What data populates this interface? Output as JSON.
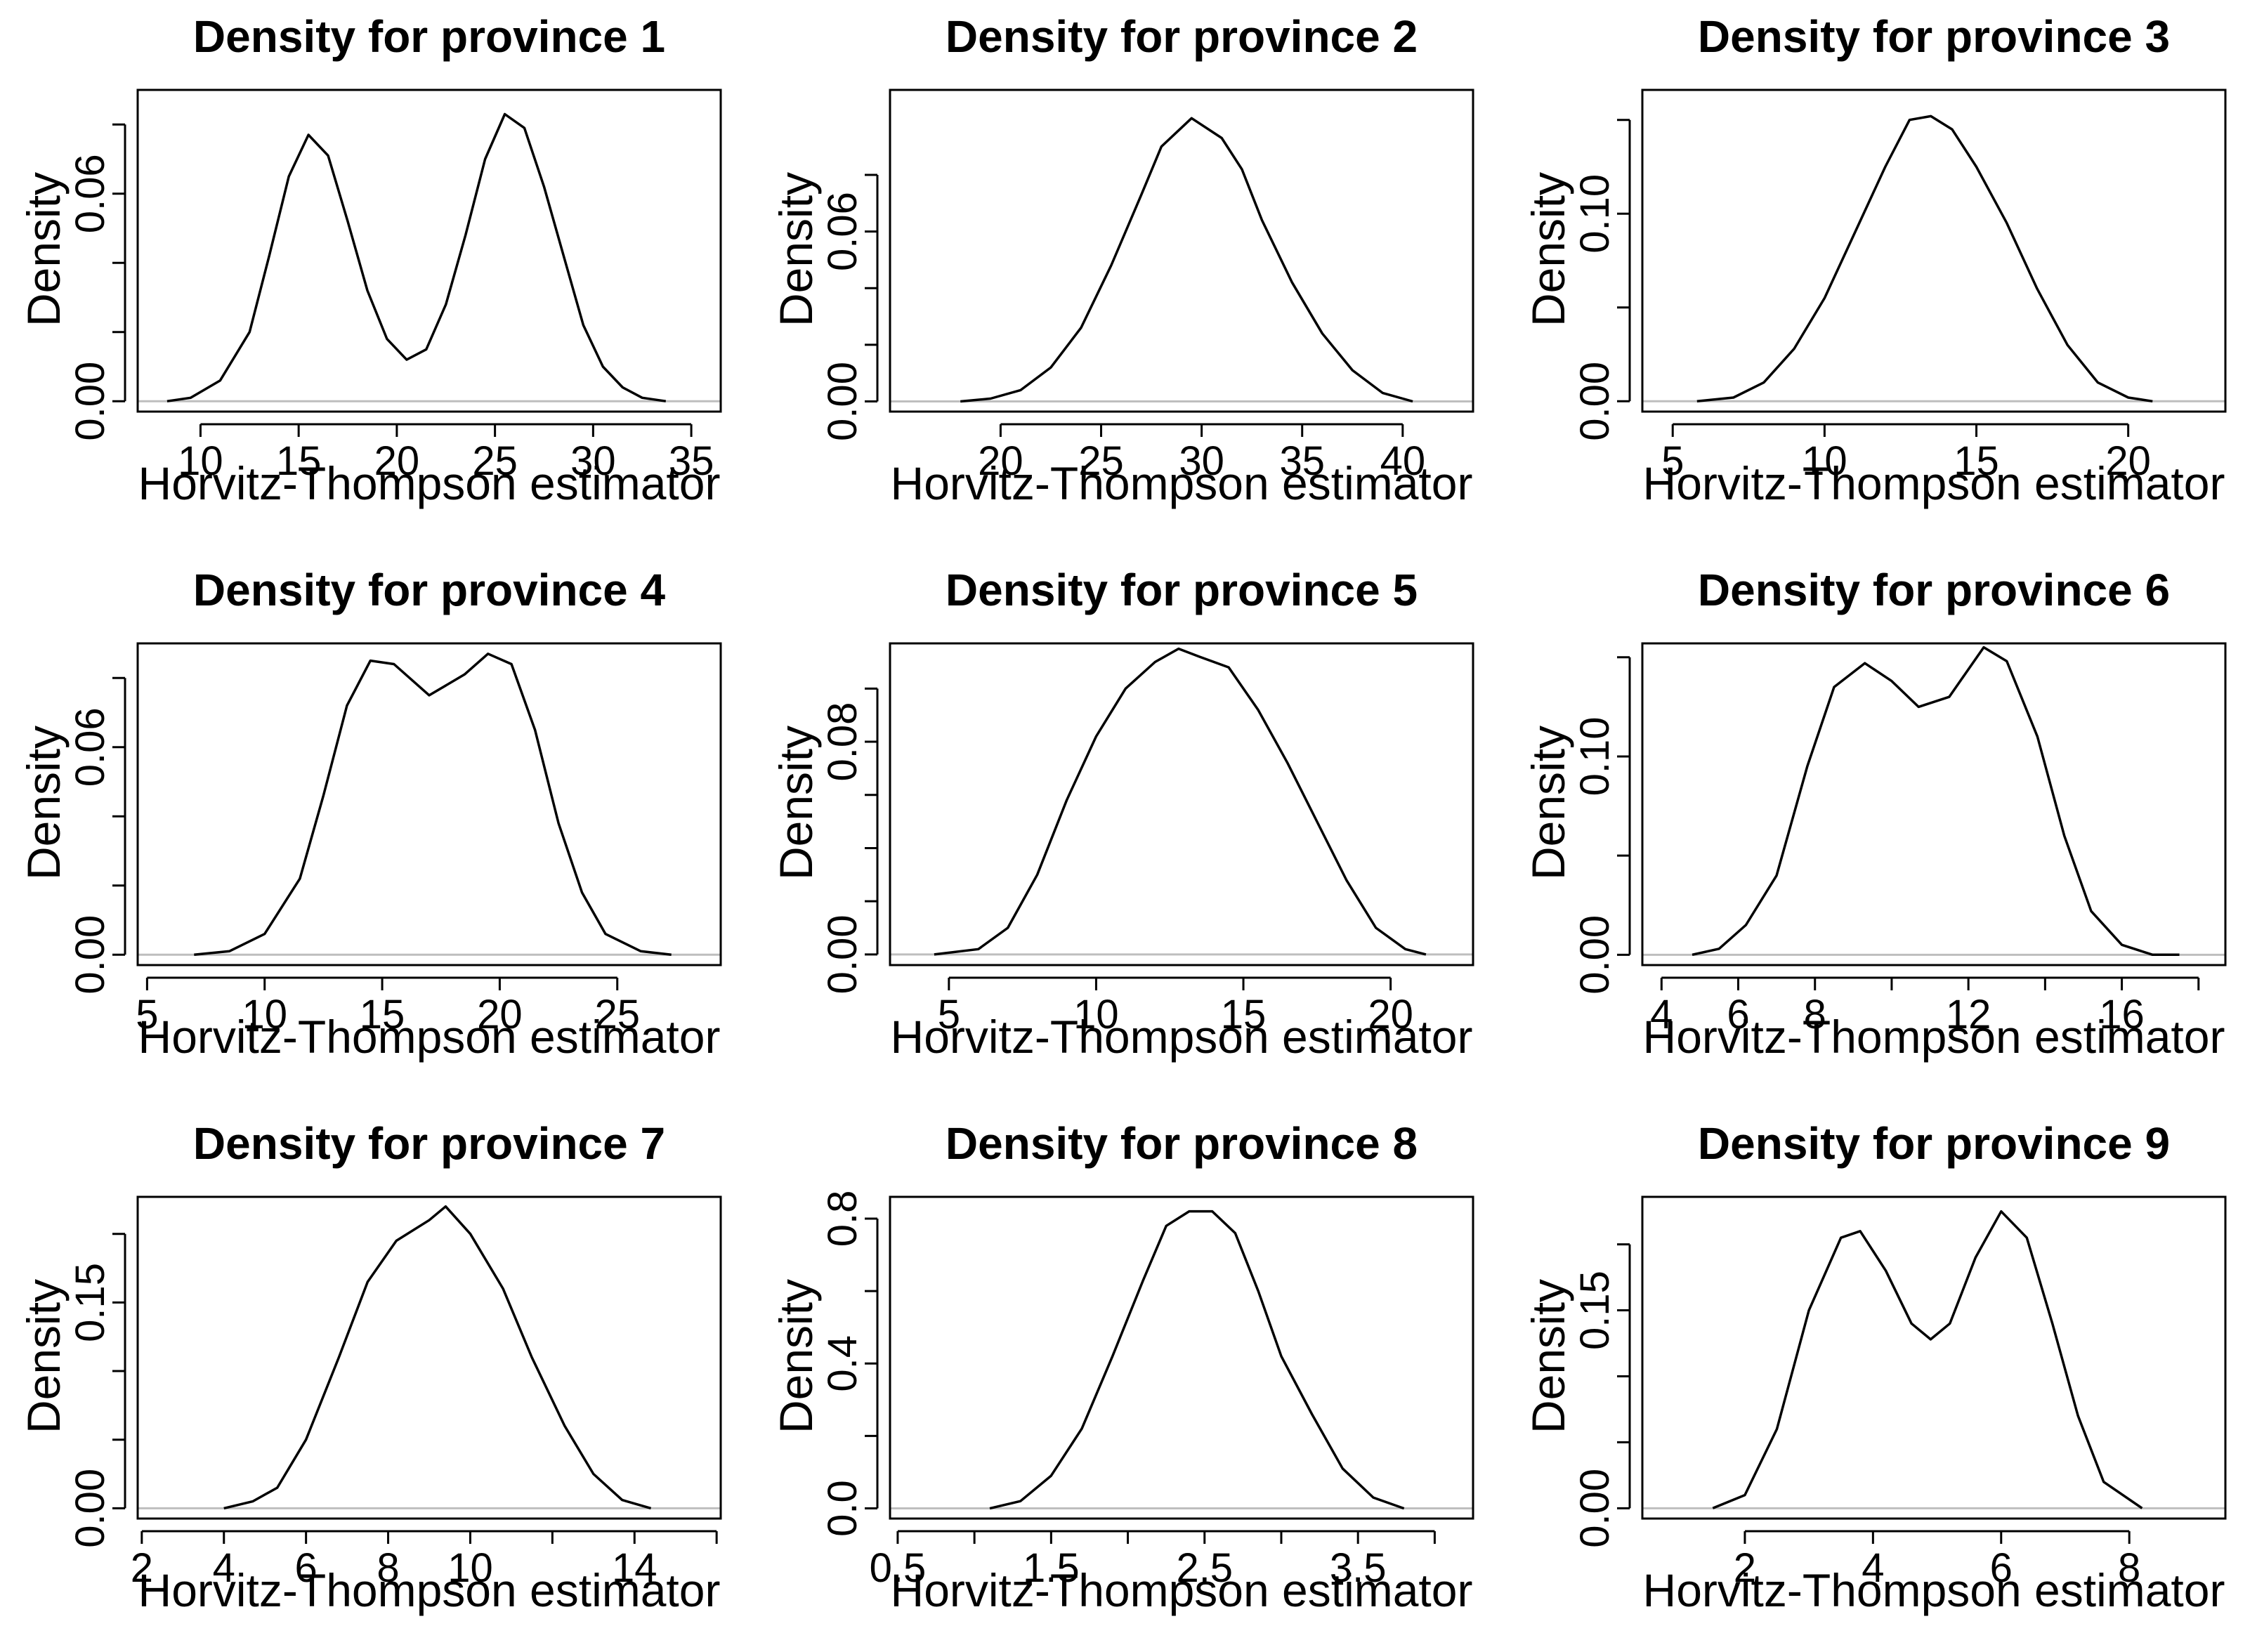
{
  "figure": {
    "panels": [
      {
        "title": "Density for province 1",
        "xlabel": "Horvitz-Thompson estimator",
        "ylabel": "Density"
      },
      {
        "title": "Density for province 2",
        "xlabel": "Horvitz-Thompson estimator",
        "ylabel": "Density"
      },
      {
        "title": "Density for province 3",
        "xlabel": "Horvitz-Thompson estimator",
        "ylabel": "Density"
      },
      {
        "title": "Density for province 4",
        "xlabel": "Horvitz-Thompson estimator",
        "ylabel": "Density"
      },
      {
        "title": "Density for province 5",
        "xlabel": "Horvitz-Thompson estimator",
        "ylabel": "Density"
      },
      {
        "title": "Density for province 6",
        "xlabel": "Horvitz-Thompson estimator",
        "ylabel": "Density"
      },
      {
        "title": "Density for province 7",
        "xlabel": "Horvitz-Thompson estimator",
        "ylabel": "Density"
      },
      {
        "title": "Density for province 8",
        "xlabel": "Horvitz-Thompson estimator",
        "ylabel": "Density"
      },
      {
        "title": "Density for province 9",
        "xlabel": "Horvitz-Thompson estimator",
        "ylabel": "Density"
      }
    ]
  },
  "colors": {
    "line": "#000000",
    "zero_line": "#bebebe",
    "frame": "#000000",
    "background": "#ffffff"
  },
  "chart_data": [
    {
      "type": "line",
      "title": "Density for province 1",
      "xlabel": "Horvitz-Thompson estimator",
      "ylabel": "Density",
      "xlim": [
        6.8,
        36.5
      ],
      "ylim": [
        -0.003,
        0.09
      ],
      "xticks": [
        10,
        15,
        20,
        25,
        30,
        35
      ],
      "xtick_labels": [
        "10",
        "15",
        "20",
        "25",
        "30",
        "35"
      ],
      "yticks": [
        0,
        0.02,
        0.04,
        0.06,
        0.08
      ],
      "yticks_labeled": [
        "0.00",
        "",
        "",
        "0.06",
        ""
      ],
      "series": [
        {
          "values": [
            [
              8.3,
              0.0
            ],
            [
              9.5,
              0.001
            ],
            [
              11,
              0.006
            ],
            [
              12.5,
              0.02
            ],
            [
              13.5,
              0.042
            ],
            [
              14.5,
              0.065
            ],
            [
              15.5,
              0.077
            ],
            [
              16.5,
              0.071
            ],
            [
              17.5,
              0.052
            ],
            [
              18.5,
              0.032
            ],
            [
              19.5,
              0.018
            ],
            [
              20.5,
              0.012
            ],
            [
              21.5,
              0.015
            ],
            [
              22.5,
              0.028
            ],
            [
              23.5,
              0.048
            ],
            [
              24.5,
              0.07
            ],
            [
              25.5,
              0.083
            ],
            [
              26.5,
              0.079
            ],
            [
              27.5,
              0.062
            ],
            [
              28.5,
              0.042
            ],
            [
              29.5,
              0.022
            ],
            [
              30.5,
              0.01
            ],
            [
              31.5,
              0.004
            ],
            [
              32.5,
              0.001
            ],
            [
              33.7,
              0.0
            ]
          ]
        }
      ]
    },
    {
      "type": "line",
      "title": "Density for province 2",
      "xlabel": "Horvitz-Thompson estimator",
      "ylabel": "Density",
      "xlim": [
        14.5,
        43.5
      ],
      "ylim": [
        -0.0036,
        0.11
      ],
      "xticks": [
        20,
        25,
        30,
        35,
        40
      ],
      "xtick_labels": [
        "20",
        "25",
        "30",
        "35",
        "40"
      ],
      "yticks": [
        0,
        0.02,
        0.04,
        0.06,
        0.08
      ],
      "yticks_labeled": [
        "0.00",
        "",
        "",
        "0.06",
        ""
      ],
      "series": [
        {
          "values": [
            [
              18,
              0.0
            ],
            [
              19.5,
              0.001
            ],
            [
              21,
              0.004
            ],
            [
              22.5,
              0.012
            ],
            [
              24,
              0.026
            ],
            [
              25.5,
              0.048
            ],
            [
              27,
              0.073
            ],
            [
              28,
              0.09
            ],
            [
              29.5,
              0.1
            ],
            [
              31,
              0.093
            ],
            [
              32,
              0.082
            ],
            [
              33,
              0.064
            ],
            [
              34.5,
              0.042
            ],
            [
              36,
              0.024
            ],
            [
              37.5,
              0.011
            ],
            [
              39,
              0.003
            ],
            [
              40.5,
              0.0
            ]
          ]
        }
      ]
    },
    {
      "type": "line",
      "title": "Density for province 3",
      "xlabel": "Horvitz-Thompson estimator",
      "ylabel": "Density",
      "xlim": [
        4.0,
        23.2
      ],
      "ylim": [
        -0.0055,
        0.166
      ],
      "xticks": [
        5,
        10,
        15,
        20
      ],
      "xtick_labels": [
        "5",
        "10",
        "15",
        "20"
      ],
      "yticks": [
        0,
        0.05,
        0.1,
        0.15
      ],
      "yticks_labeled": [
        "0.00",
        "",
        "0.10",
        ""
      ],
      "series": [
        {
          "values": [
            [
              5.8,
              0.0
            ],
            [
              7,
              0.002
            ],
            [
              8,
              0.01
            ],
            [
              9,
              0.028
            ],
            [
              10,
              0.055
            ],
            [
              11,
              0.09
            ],
            [
              12,
              0.125
            ],
            [
              12.8,
              0.15
            ],
            [
              13.5,
              0.152
            ],
            [
              14.2,
              0.145
            ],
            [
              15,
              0.125
            ],
            [
              16,
              0.095
            ],
            [
              17,
              0.06
            ],
            [
              18,
              0.03
            ],
            [
              19,
              0.01
            ],
            [
              20,
              0.002
            ],
            [
              20.8,
              0.0
            ]
          ]
        }
      ]
    },
    {
      "type": "line",
      "title": "Density for province 4",
      "xlabel": "Horvitz-Thompson estimator",
      "ylabel": "Density",
      "xlim": [
        4.6,
        29.4
      ],
      "ylim": [
        -0.003,
        0.09
      ],
      "xticks": [
        5,
        10,
        15,
        20,
        25
      ],
      "xtick_labels": [
        "5",
        "10",
        "15",
        "20",
        "25"
      ],
      "yticks": [
        0,
        0.02,
        0.04,
        0.06,
        0.08
      ],
      "yticks_labeled": [
        "0.00",
        "",
        "",
        "0.06",
        ""
      ],
      "series": [
        {
          "values": [
            [
              7,
              0.0
            ],
            [
              8.5,
              0.001
            ],
            [
              10,
              0.006
            ],
            [
              11.5,
              0.022
            ],
            [
              12.5,
              0.046
            ],
            [
              13.5,
              0.072
            ],
            [
              14.5,
              0.085
            ],
            [
              15.5,
              0.084
            ],
            [
              17,
              0.075
            ],
            [
              18.5,
              0.081
            ],
            [
              19.5,
              0.087
            ],
            [
              20.5,
              0.084
            ],
            [
              21.5,
              0.065
            ],
            [
              22.5,
              0.038
            ],
            [
              23.5,
              0.018
            ],
            [
              24.5,
              0.006
            ],
            [
              26,
              0.001
            ],
            [
              27.3,
              0.0
            ]
          ]
        }
      ]
    },
    {
      "type": "line",
      "title": "Density for province 5",
      "xlabel": "Horvitz-Thompson estimator",
      "ylabel": "Density",
      "xlim": [
        3.0,
        22.8
      ],
      "ylim": [
        -0.004,
        0.117
      ],
      "xticks": [
        5,
        10,
        15,
        20
      ],
      "xtick_labels": [
        "5",
        "10",
        "15",
        "20"
      ],
      "yticks": [
        0,
        0.02,
        0.04,
        0.06,
        0.08,
        0.1
      ],
      "yticks_labeled": [
        "0.00",
        "",
        "",
        "",
        "0.08",
        ""
      ],
      "series": [
        {
          "values": [
            [
              4.5,
              0.0
            ],
            [
              6,
              0.002
            ],
            [
              7,
              0.01
            ],
            [
              8,
              0.03
            ],
            [
              9,
              0.058
            ],
            [
              10,
              0.082
            ],
            [
              11,
              0.1
            ],
            [
              12,
              0.11
            ],
            [
              12.8,
              0.115
            ],
            [
              13.5,
              0.112
            ],
            [
              14.5,
              0.108
            ],
            [
              15.5,
              0.092
            ],
            [
              16.5,
              0.072
            ],
            [
              17.5,
              0.05
            ],
            [
              18.5,
              0.028
            ],
            [
              19.5,
              0.01
            ],
            [
              20.5,
              0.002
            ],
            [
              21.2,
              0.0
            ]
          ]
        }
      ]
    },
    {
      "type": "line",
      "title": "Density for province 6",
      "xlabel": "Horvitz-Thompson estimator",
      "ylabel": "Density",
      "xlim": [
        3.5,
        18.7
      ],
      "ylim": [
        -0.0052,
        0.157
      ],
      "xticks": [
        4,
        6,
        8,
        10,
        12,
        14,
        16,
        18
      ],
      "xtick_labels": [
        "4",
        "6",
        "8",
        "",
        "12",
        "",
        "16",
        ""
      ],
      "yticks": [
        0,
        0.05,
        0.1,
        0.15
      ],
      "yticks_labeled": [
        "0.00",
        "",
        "0.10",
        ""
      ],
      "series": [
        {
          "values": [
            [
              4.8,
              0.0
            ],
            [
              5.5,
              0.003
            ],
            [
              6.2,
              0.015
            ],
            [
              7,
              0.04
            ],
            [
              7.8,
              0.095
            ],
            [
              8.5,
              0.135
            ],
            [
              9.3,
              0.147
            ],
            [
              10,
              0.138
            ],
            [
              10.7,
              0.125
            ],
            [
              11.5,
              0.13
            ],
            [
              12.4,
              0.155
            ],
            [
              13,
              0.148
            ],
            [
              13.8,
              0.11
            ],
            [
              14.5,
              0.06
            ],
            [
              15.2,
              0.022
            ],
            [
              16,
              0.005
            ],
            [
              16.8,
              0.0
            ],
            [
              17.5,
              0.0
            ]
          ]
        }
      ]
    },
    {
      "type": "line",
      "title": "Density for province 7",
      "xlabel": "Horvitz-Thompson estimator",
      "ylabel": "Density",
      "xlim": [
        1.9,
        16.1
      ],
      "ylim": [
        -0.0075,
        0.227
      ],
      "xticks": [
        2,
        4,
        6,
        8,
        10,
        12,
        14,
        16
      ],
      "xtick_labels": [
        "2",
        "4",
        "6",
        "8",
        "10",
        "",
        "14",
        ""
      ],
      "yticks": [
        0,
        0.05,
        0.1,
        0.15,
        0.2
      ],
      "yticks_labeled": [
        "0.00",
        "",
        "",
        "0.15",
        ""
      ],
      "series": [
        {
          "values": [
            [
              4,
              0.0
            ],
            [
              4.7,
              0.005
            ],
            [
              5.3,
              0.015
            ],
            [
              6,
              0.05
            ],
            [
              6.8,
              0.11
            ],
            [
              7.5,
              0.165
            ],
            [
              8.2,
              0.195
            ],
            [
              9,
              0.21
            ],
            [
              9.4,
              0.22
            ],
            [
              10,
              0.2
            ],
            [
              10.8,
              0.16
            ],
            [
              11.5,
              0.11
            ],
            [
              12.3,
              0.06
            ],
            [
              13,
              0.025
            ],
            [
              13.7,
              0.006
            ],
            [
              14.4,
              0.0
            ]
          ]
        }
      ]
    },
    {
      "type": "line",
      "title": "Density for province 8",
      "xlabel": "Horvitz-Thompson estimator",
      "ylabel": "Density",
      "xlim": [
        0.45,
        4.25
      ],
      "ylim": [
        -0.028,
        0.86
      ],
      "xticks": [
        0.5,
        1,
        1.5,
        2,
        2.5,
        3,
        3.5,
        4
      ],
      "xtick_labels": [
        "0.5",
        "",
        "1.5",
        "",
        "2.5",
        "",
        "3.5",
        ""
      ],
      "yticks": [
        0,
        0.2,
        0.4,
        0.6,
        0.8
      ],
      "yticks_labeled": [
        "0.0",
        "",
        "0.4",
        "",
        "0.8"
      ],
      "series": [
        {
          "values": [
            [
              1.1,
              0.0
            ],
            [
              1.3,
              0.02
            ],
            [
              1.5,
              0.09
            ],
            [
              1.7,
              0.22
            ],
            [
              1.9,
              0.42
            ],
            [
              2.1,
              0.63
            ],
            [
              2.25,
              0.78
            ],
            [
              2.4,
              0.82
            ],
            [
              2.55,
              0.82
            ],
            [
              2.7,
              0.76
            ],
            [
              2.85,
              0.6
            ],
            [
              3.0,
              0.42
            ],
            [
              3.2,
              0.26
            ],
            [
              3.4,
              0.11
            ],
            [
              3.6,
              0.03
            ],
            [
              3.8,
              0.0
            ]
          ]
        }
      ]
    },
    {
      "type": "line",
      "title": "Density for province 9",
      "xlabel": "Horvitz-Thompson estimator",
      "ylabel": "Density",
      "xlim": [
        0.4,
        9.5
      ],
      "ylim": [
        -0.0078,
        0.236
      ],
      "xticks": [
        2,
        4,
        6,
        8
      ],
      "xtick_labels": [
        "2",
        "4",
        "6",
        "8"
      ],
      "yticks": [
        0,
        0.05,
        0.1,
        0.15,
        0.2
      ],
      "yticks_labeled": [
        "0.00",
        "",
        "",
        "0.15",
        ""
      ],
      "series": [
        {
          "values": [
            [
              1.5,
              0.0
            ],
            [
              2,
              0.01
            ],
            [
              2.5,
              0.06
            ],
            [
              3,
              0.15
            ],
            [
              3.5,
              0.205
            ],
            [
              3.8,
              0.21
            ],
            [
              4.2,
              0.18
            ],
            [
              4.6,
              0.14
            ],
            [
              4.9,
              0.128
            ],
            [
              5.2,
              0.14
            ],
            [
              5.6,
              0.19
            ],
            [
              6.0,
              0.225
            ],
            [
              6.4,
              0.205
            ],
            [
              6.8,
              0.14
            ],
            [
              7.2,
              0.07
            ],
            [
              7.6,
              0.02
            ],
            [
              8.2,
              0.0
            ]
          ]
        }
      ]
    }
  ]
}
